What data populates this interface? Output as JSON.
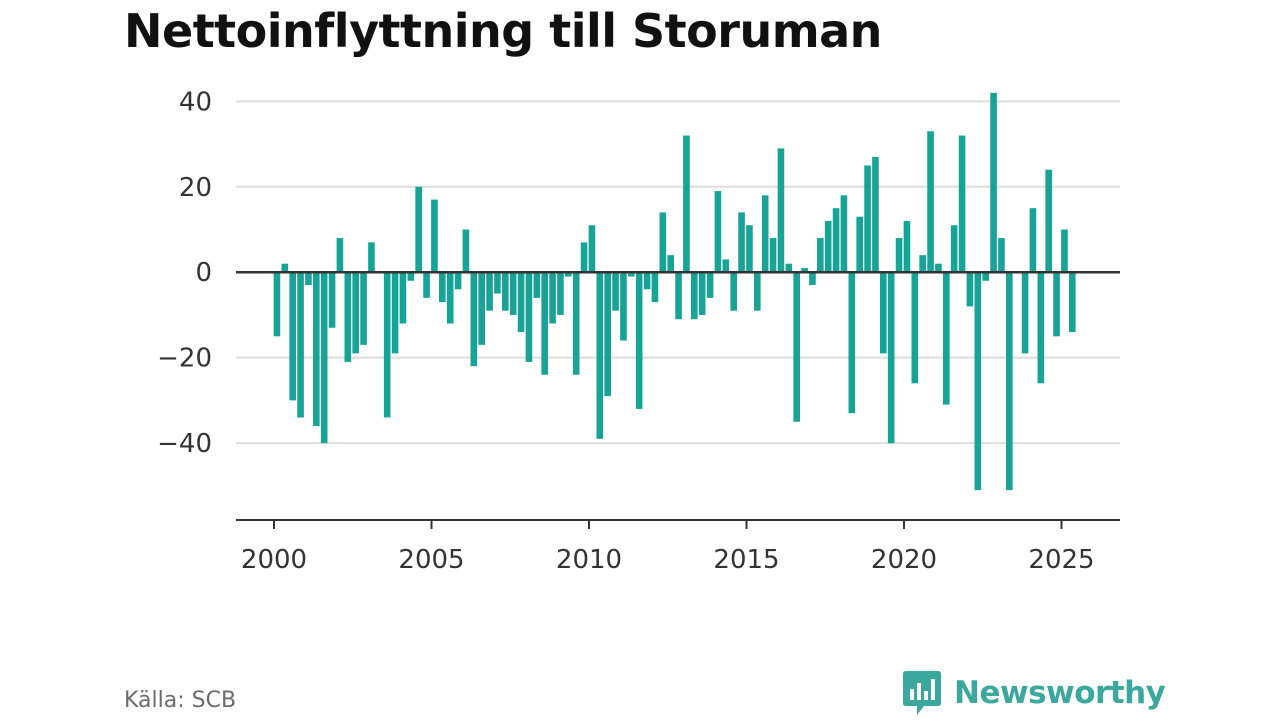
{
  "title": "Nettoinflyttning till Storuman",
  "source": "Källa: SCB",
  "brand": {
    "name": "Newsworthy",
    "icon": "bar-chart-speech-bubble-icon"
  },
  "colors": {
    "bar": "#17a396",
    "grid": "#dddddd",
    "zero_line": "#333333",
    "text": "#333333",
    "brand": "#3aa89c"
  },
  "chart_data": {
    "type": "bar",
    "frequency": "quarterly",
    "x_start": "2000 Q1",
    "values": [
      -15,
      2,
      -30,
      -34,
      -3,
      -36,
      -40,
      -13,
      8,
      -21,
      -19,
      -17,
      7,
      0,
      -34,
      -19,
      -12,
      -2,
      20,
      -6,
      17,
      -7,
      -12,
      -4,
      10,
      -22,
      -17,
      -9,
      -5,
      -9,
      -10,
      -14,
      -21,
      -6,
      -24,
      -12,
      -10,
      -1,
      -24,
      7,
      11,
      -39,
      -29,
      -9,
      -16,
      -1,
      -32,
      -4,
      -7,
      14,
      4,
      -11,
      32,
      -11,
      -10,
      -6,
      19,
      3,
      -9,
      14,
      11,
      -9,
      18,
      8,
      29,
      2,
      -35,
      1,
      -3,
      8,
      12,
      15,
      18,
      -33,
      13,
      25,
      27,
      -19,
      -40,
      8,
      12,
      -26,
      4,
      33,
      2,
      -31,
      11,
      32,
      -8,
      -51,
      -2,
      42,
      8,
      -51,
      0,
      -19,
      15,
      -26,
      24,
      -15,
      10,
      -14
    ],
    "ylim": [
      -58,
      45
    ],
    "yticks": [
      40,
      20,
      0,
      -20,
      -40
    ],
    "ytick_labels": [
      "40",
      "20",
      "0",
      "−20",
      "−40"
    ],
    "xticks": [
      2000,
      2005,
      2010,
      2015,
      2020,
      2025
    ],
    "xtick_labels": [
      "2000",
      "2005",
      "2010",
      "2015",
      "2020",
      "2025"
    ],
    "xlabel": "",
    "ylabel": "",
    "grid": true,
    "legend": "none"
  }
}
